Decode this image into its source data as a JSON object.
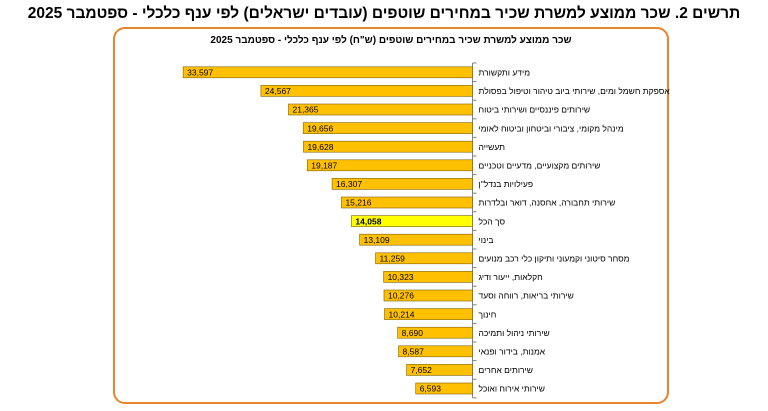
{
  "figure_title": "תרשים 2. שכר ממוצע למשרת שכיר במחירים שוטפים (עובדים ישראלים) לפי ענף כלכלי -  ספטמבר 2025",
  "chart_data": {
    "type": "bar",
    "orientation": "horizontal",
    "title": "שכר ממוצע למשרת שכיר במחירים  שוטפים (ש\"ח) לפי ענף כלכלי - ספטמבר 2025",
    "categories": [
      "מידע ותקשורת",
      "אספקת חשמל ומים, שירותי ביוב טיהור וטיפול בפסולת",
      "שירותים פיננסיים ושירותי ביטוח",
      "מינהל מקומי, ציבורי וביטחון וביטוח לאומי",
      "תעשייה",
      "שירותים מקצועיים, מדעיים וטכניים",
      "פעילויות בנדל\"ן",
      "שירותי תחבורה, אחסנה, דואר ובלדרות",
      "סך הכל",
      "בינוי",
      "מסחר סיטוני וקמעוני ותיקון כלי רכב מנועים",
      "חקלאות, ייעור ודיג",
      "שירותי בריאות, רווחה וסעד",
      "חינוך",
      "שירותי ניהול ותמיכה",
      "אמנות, בידור ופנאי",
      "שירותים אחרים",
      "שירותי אירוח ואוכל"
    ],
    "values": [
      33597,
      24567,
      21365,
      19656,
      19628,
      19187,
      16307,
      15216,
      14058,
      13109,
      11259,
      10323,
      10276,
      10214,
      8690,
      8587,
      7652,
      6593
    ],
    "value_labels": [
      "33,597",
      "24,567",
      "21,365",
      "19,656",
      "19,628",
      "19,187",
      "16,307",
      "15,216",
      "14,058",
      "13,109",
      "11,259",
      "10,323",
      "10,276",
      "10,214",
      "8,690",
      "8,587",
      "7,652",
      "6,593"
    ],
    "highlight_category": "סך הכל",
    "bar_color": "#ffc000",
    "highlight_color": "#ffff00",
    "frame_color": "#e8842c",
    "xlim": [
      0,
      40000
    ],
    "axis_side": "right"
  }
}
